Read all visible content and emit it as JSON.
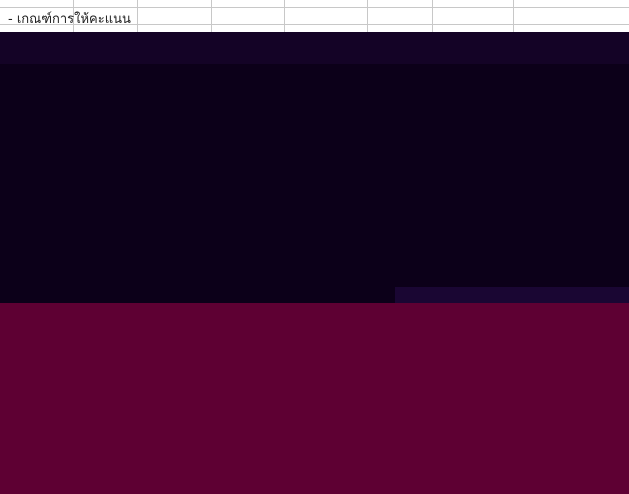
{
  "sheet": {
    "cell_heading": "- เกณฑ์การให้คะแนน"
  },
  "colors": {
    "sheet_background": "#ffffff",
    "gridline": "#c8c8c8",
    "corrupted_dark_region": "#0c0019",
    "corrupted_lower_region": "#5e0033"
  }
}
